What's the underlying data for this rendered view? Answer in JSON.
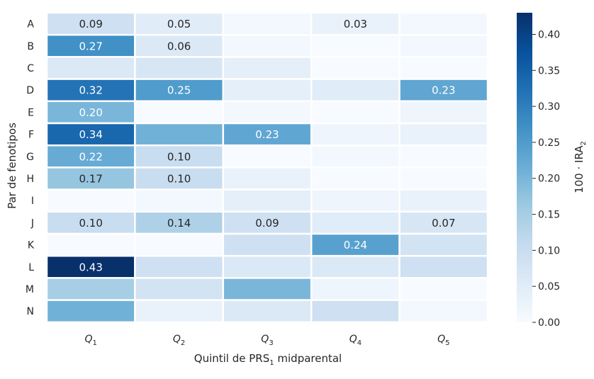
{
  "chart_data": {
    "type": "heatmap",
    "title": "",
    "rows": [
      "A",
      "B",
      "C",
      "D",
      "E",
      "F",
      "G",
      "H",
      "I",
      "J",
      "K",
      "L",
      "M",
      "N"
    ],
    "columns": [
      {
        "base": "Q",
        "sub": "1"
      },
      {
        "base": "Q",
        "sub": "2"
      },
      {
        "base": "Q",
        "sub": "3"
      },
      {
        "base": "Q",
        "sub": "4"
      },
      {
        "base": "Q",
        "sub": "5"
      }
    ],
    "values": [
      [
        0.09,
        0.05,
        0.01,
        0.03,
        0.01
      ],
      [
        0.27,
        0.06,
        0.01,
        0.0,
        0.01
      ],
      [
        0.06,
        0.07,
        0.04,
        0.0,
        0.0
      ],
      [
        0.32,
        0.25,
        0.04,
        0.05,
        0.23
      ],
      [
        0.2,
        0.0,
        0.01,
        0.0,
        0.02
      ],
      [
        0.34,
        0.21,
        0.23,
        0.02,
        0.03
      ],
      [
        0.22,
        0.1,
        0.0,
        0.01,
        0.0
      ],
      [
        0.17,
        0.1,
        0.03,
        0.0,
        0.0
      ],
      [
        0.0,
        0.01,
        0.04,
        0.02,
        0.03
      ],
      [
        0.1,
        0.14,
        0.09,
        0.05,
        0.07
      ],
      [
        0.0,
        0.0,
        0.09,
        0.24,
        0.08
      ],
      [
        0.43,
        0.09,
        0.06,
        0.06,
        0.09
      ],
      [
        0.15,
        0.08,
        0.2,
        0.02,
        0.0
      ],
      [
        0.21,
        0.03,
        0.06,
        0.09,
        0.01
      ]
    ],
    "annotations": [
      [
        "0.09",
        "0.05",
        "",
        "0.03",
        ""
      ],
      [
        "0.27",
        "0.06",
        "",
        "",
        ""
      ],
      [
        "",
        "",
        "",
        "",
        ""
      ],
      [
        "0.32",
        "0.25",
        "",
        "",
        "0.23"
      ],
      [
        "0.20",
        "",
        "",
        "",
        ""
      ],
      [
        "0.34",
        "",
        "0.23",
        "",
        ""
      ],
      [
        "0.22",
        "0.10",
        "",
        "",
        ""
      ],
      [
        "0.17",
        "0.10",
        "",
        "",
        ""
      ],
      [
        "",
        "",
        "",
        "",
        ""
      ],
      [
        "0.10",
        "0.14",
        "0.09",
        "",
        "0.07"
      ],
      [
        "",
        "",
        "",
        "0.24",
        ""
      ],
      [
        "0.43",
        "",
        "",
        "",
        ""
      ],
      [
        "",
        "",
        "",
        "",
        ""
      ],
      [
        "",
        "",
        "",
        "",
        ""
      ]
    ],
    "xlabel": {
      "prefix": "Quintil de PRS",
      "sub": "1",
      "suffix": " midparental"
    },
    "ylabel": "Par de fenotipos",
    "colorbar": {
      "label": {
        "prefix": "100 · IRA",
        "sub": "2"
      },
      "range": [
        0.0,
        0.43
      ],
      "ticks": [
        "0.00",
        "0.05",
        "0.10",
        "0.15",
        "0.20",
        "0.25",
        "0.30",
        "0.35",
        "0.40"
      ],
      "colormap": "Blues"
    },
    "grid": false
  }
}
